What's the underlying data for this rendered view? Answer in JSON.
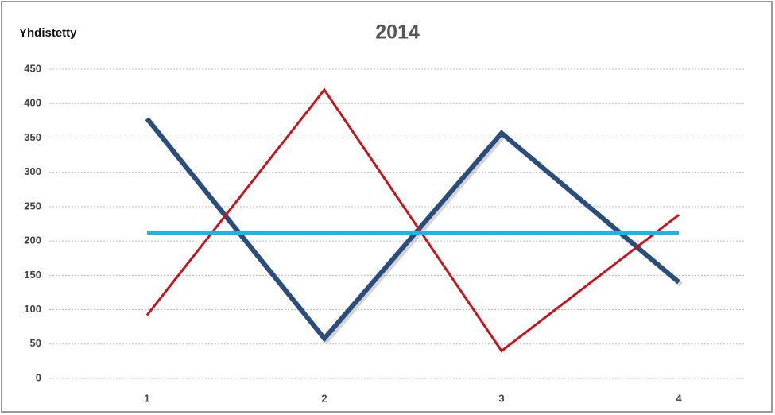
{
  "chart_data": {
    "type": "line",
    "title": "2014",
    "y_label": "Yhdistetty",
    "categories": [
      "1",
      "2",
      "3",
      "4"
    ],
    "series": [
      {
        "color": "#2b4d7c",
        "values": [
          378,
          58,
          357,
          140
        ]
      },
      {
        "color": "#c3161c",
        "values": [
          92,
          420,
          40,
          238
        ]
      },
      {
        "color": "#1fb2e6",
        "values": [
          212,
          212,
          212,
          212
        ]
      }
    ],
    "ylim": [
      0,
      450
    ],
    "yticks": [
      0,
      50,
      100,
      150,
      200,
      250,
      300,
      350,
      400,
      450
    ],
    "grid": true
  }
}
